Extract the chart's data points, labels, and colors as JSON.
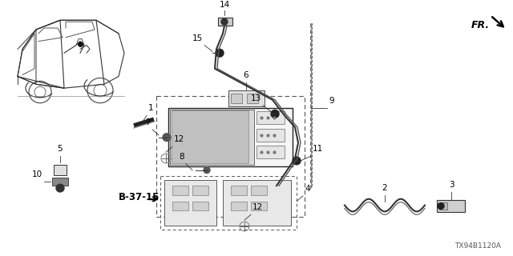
{
  "bg_color": "#ffffff",
  "diagram_code": "TX94B1120A",
  "lc": "#000000",
  "font_size": 7.5,
  "fr_text": "FR.",
  "ref_text": "B-37-15"
}
